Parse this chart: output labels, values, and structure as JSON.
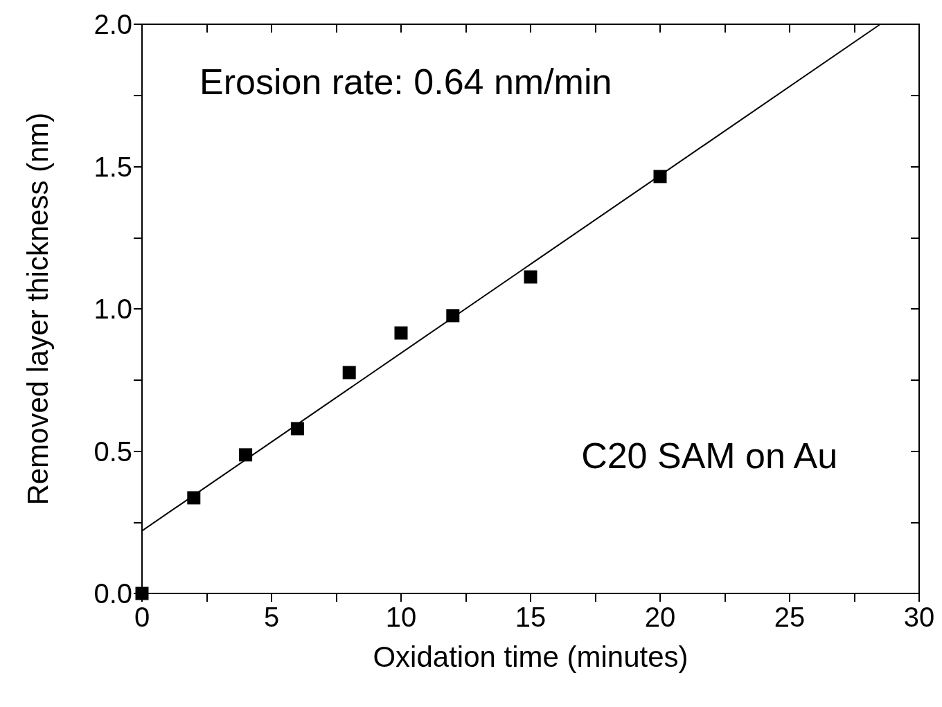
{
  "chart_data": {
    "type": "scatter",
    "xlabel": "Oxidation time (minutes)",
    "ylabel": "Removed layer thickness (nm)",
    "annotations": [
      "Erosion rate: 0.64 nm/min",
      "C20 SAM on Au"
    ],
    "xlim": [
      0,
      30
    ],
    "ylim": [
      0,
      2.0
    ],
    "xticks": [
      {
        "value": 0,
        "label": "0"
      },
      {
        "value": 2.5,
        "label": null
      },
      {
        "value": 5,
        "label": "5"
      },
      {
        "value": 7.5,
        "label": null
      },
      {
        "value": 10,
        "label": "10"
      },
      {
        "value": 12.5,
        "label": null
      },
      {
        "value": 15,
        "label": "15"
      },
      {
        "value": 17.5,
        "label": null
      },
      {
        "value": 20,
        "label": "20"
      },
      {
        "value": 22.5,
        "label": null
      },
      {
        "value": 25,
        "label": "25"
      },
      {
        "value": 27.5,
        "label": null
      },
      {
        "value": 30,
        "label": "30"
      }
    ],
    "yticks": [
      {
        "value": 0,
        "label": "0.0"
      },
      {
        "value": 0.25,
        "label": null
      },
      {
        "value": 0.5,
        "label": "0.5"
      },
      {
        "value": 0.75,
        "label": null
      },
      {
        "value": 1.0,
        "label": "1.0"
      },
      {
        "value": 1.25,
        "label": null
      },
      {
        "value": 1.5,
        "label": "1.5"
      },
      {
        "value": 1.75,
        "label": null
      },
      {
        "value": 2.0,
        "label": "2.0"
      }
    ],
    "grid": false,
    "marker": "square",
    "series": [
      {
        "color": "#000000",
        "x": [
          0,
          2,
          4,
          6,
          8,
          10,
          12,
          15,
          20
        ],
        "values": [
          0,
          0.336,
          0.487,
          0.579,
          0.776,
          0.915,
          0.976,
          1.112,
          1.465
        ]
      },
      {
        "type": "line",
        "color": "#000000",
        "marker": "none",
        "line_style": "solid",
        "x": [
          0,
          28.5
        ],
        "values": [
          0.22,
          2.0
        ]
      }
    ]
  }
}
